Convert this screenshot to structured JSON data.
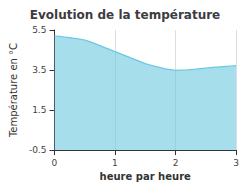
{
  "chart_data": {
    "type": "area",
    "title": "Evolution de la température",
    "xlabel": "heure par heure",
    "ylabel": "Température en °C",
    "x": [
      0.0,
      0.083,
      0.167,
      0.25,
      0.333,
      0.417,
      0.5,
      0.583,
      0.667,
      0.75,
      0.833,
      0.917,
      1.0,
      1.083,
      1.167,
      1.25,
      1.333,
      1.417,
      1.5,
      1.583,
      1.667,
      1.75,
      1.833,
      1.917,
      2.0,
      2.083,
      2.167,
      2.25,
      2.333,
      2.417,
      2.5,
      2.583,
      2.667,
      2.75,
      2.833,
      2.917,
      3.0
    ],
    "values": [
      5.2,
      5.18,
      5.15,
      5.12,
      5.08,
      5.04,
      5.0,
      4.92,
      4.82,
      4.72,
      4.62,
      4.52,
      4.42,
      4.32,
      4.22,
      4.12,
      4.02,
      3.92,
      3.82,
      3.75,
      3.68,
      3.62,
      3.56,
      3.52,
      3.48,
      3.49,
      3.5,
      3.52,
      3.54,
      3.57,
      3.6,
      3.62,
      3.64,
      3.66,
      3.68,
      3.7,
      3.72
    ],
    "color": "#6bc8e0",
    "xlim": [
      0,
      3
    ],
    "ylim": [
      -0.5,
      5.5
    ],
    "xticks": [
      0,
      1,
      2,
      3
    ],
    "yticks": [
      -0.5,
      1.5,
      3.5,
      5.5
    ],
    "grid": "x"
  }
}
